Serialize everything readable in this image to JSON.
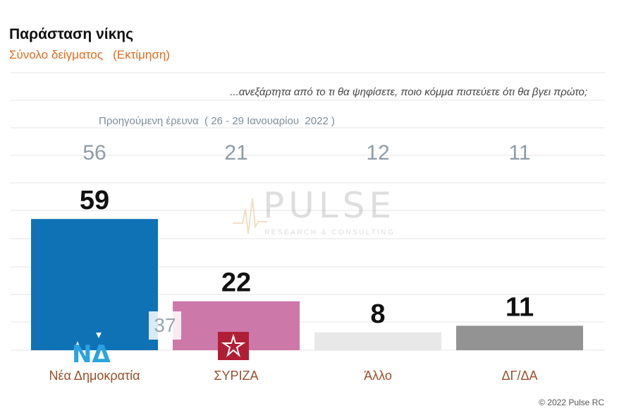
{
  "header": {
    "title": "Παράσταση νίκης",
    "subtitle": "Σύνολο δείγματος   (Εκτίμηση)"
  },
  "question": "...ανεξάρτητα από το τι θα ψηφίσετε, ποιο κόμμα πιστεύετε ότι θα βγει πρώτο;",
  "previous_survey_label": "Προηγούμενη έρευνα  ( 26 - 29 Ιανουαρίου  2022 )",
  "watermark": {
    "brand": "PULSE",
    "tagline": "RESEARCH & CONSULTING"
  },
  "copyright": "© 2022 Pulse RC",
  "logos": {
    "nd": "ΝΔ",
    "syriza": "syriza-star-icon"
  },
  "chart_data": {
    "type": "bar",
    "title": "Παράσταση νίκης",
    "categories": [
      "Νέα Δημοκρατία",
      "ΣΥΡΙΖΑ",
      "Άλλο",
      "ΔΓ/ΔΑ"
    ],
    "series": [
      {
        "values": [
          59,
          22,
          8,
          11
        ],
        "colors": [
          "#0f72b5",
          "#cc78a8",
          "#e8e8e8",
          "#939393"
        ]
      }
    ],
    "previous_values": [
      56,
      21,
      12,
      11
    ],
    "previous_extra_label": "37",
    "ylim": [
      0,
      60
    ],
    "grid": true
  }
}
